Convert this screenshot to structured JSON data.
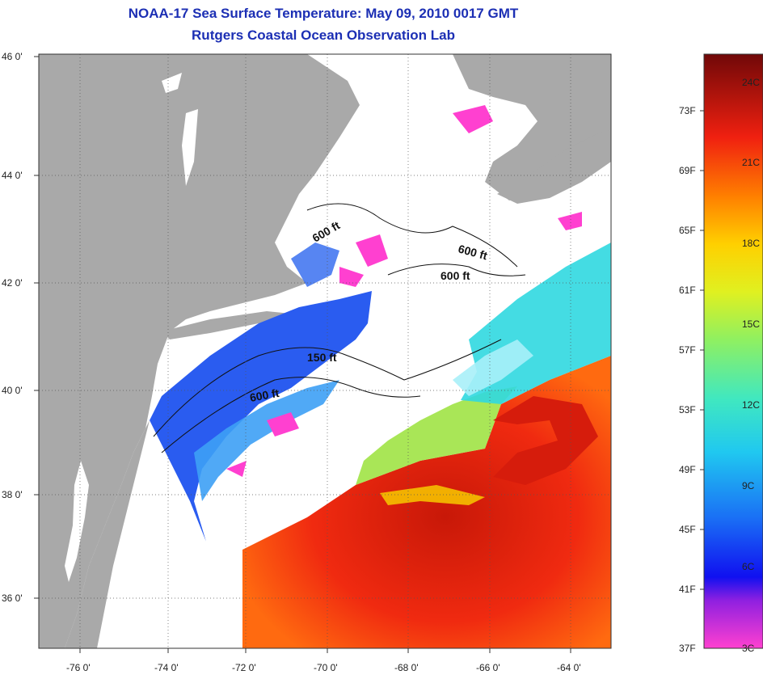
{
  "title": {
    "line1": "NOAA-17 Sea Surface Temperature:  May 09, 2010 0017 GMT",
    "line2": "Rutgers Coastal Ocean Observation Lab"
  },
  "map": {
    "lat_labels": [
      "46 0'",
      "44 0'",
      "42 0'",
      "40 0'",
      "38 0'",
      "36 0'"
    ],
    "lon_labels": [
      "-76 0'",
      "-74 0'",
      "-72 0'",
      "-70 0'",
      "-68 0'",
      "-66 0'",
      "-64 0'"
    ],
    "contour_labels": [
      "600 ft",
      "600 ft",
      "600 ft",
      "150 ft",
      "600 ft"
    ],
    "colors": {
      "land": "#a9a9a9",
      "no_data": "#ffffff",
      "cold": "#2040f0",
      "warm": "#e02010"
    }
  },
  "colorbar": {
    "fahrenheit": [
      "73F",
      "69F",
      "65F",
      "61F",
      "57F",
      "53F",
      "49F",
      "45F",
      "41F",
      "37F"
    ],
    "celsius": [
      "24C",
      "21C",
      "18C",
      "15C",
      "12C",
      "9C",
      "6C",
      "3C"
    ]
  }
}
